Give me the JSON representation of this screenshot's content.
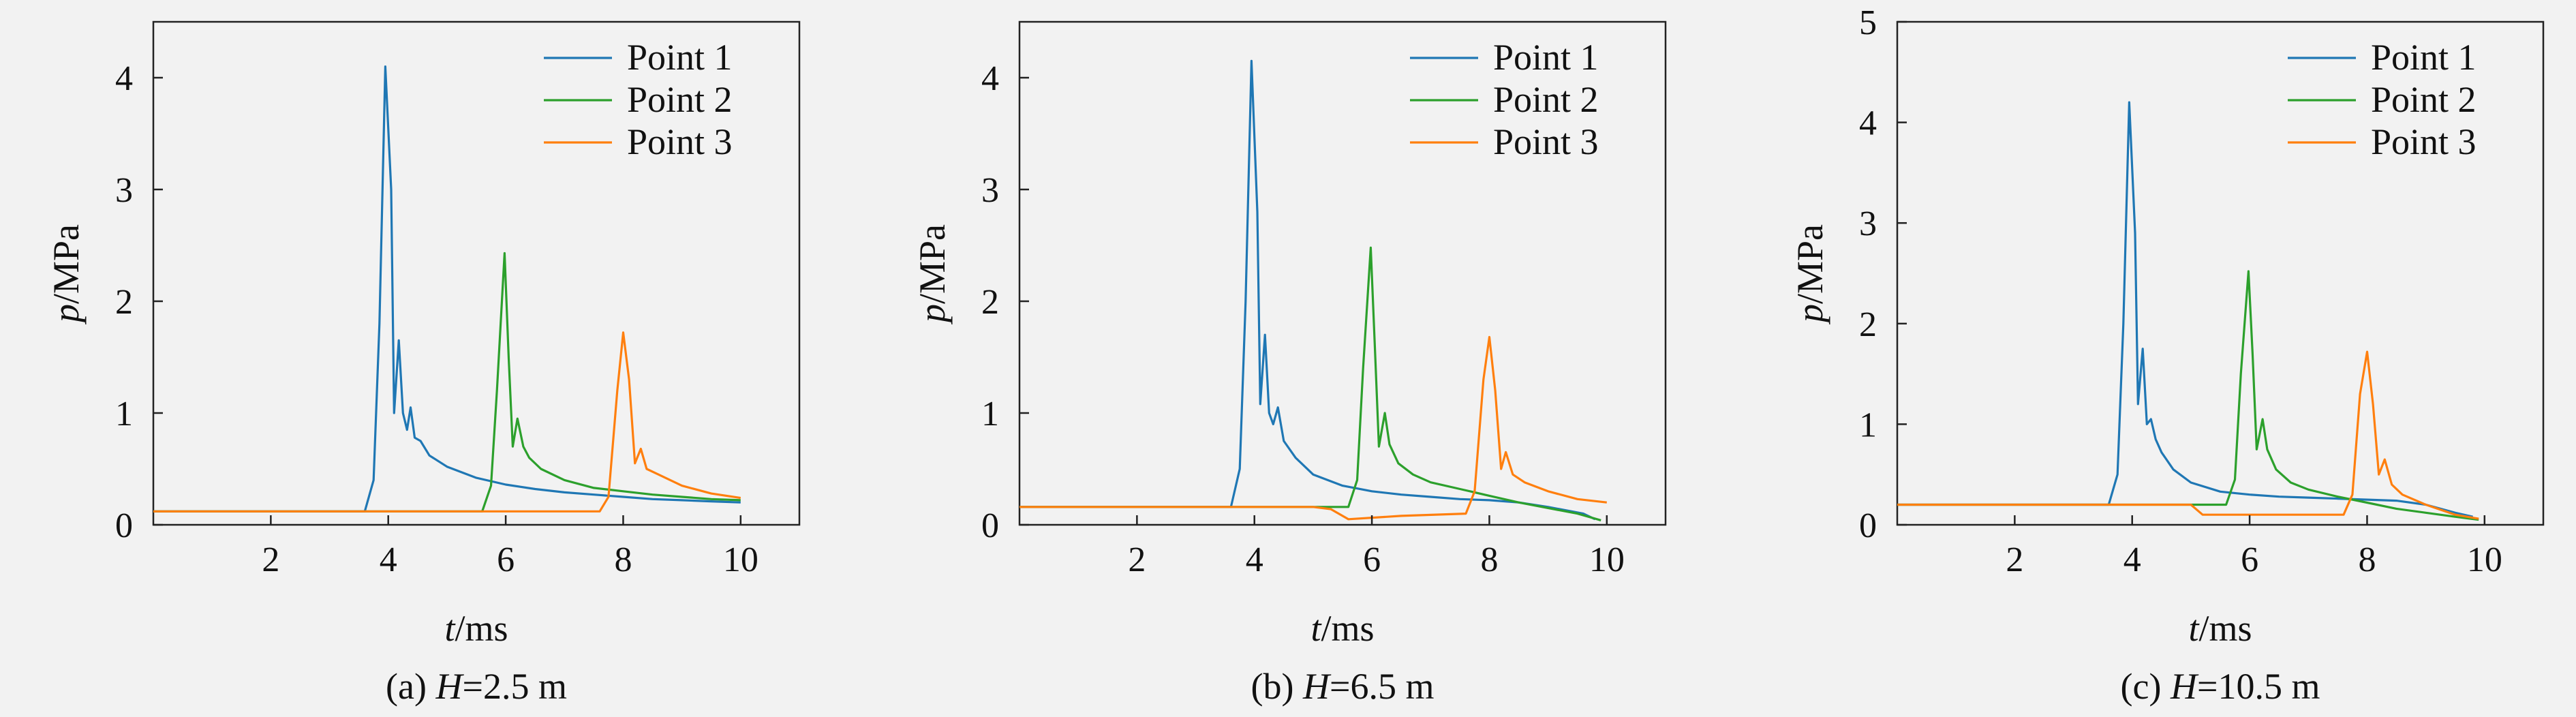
{
  "figure": {
    "panels": [
      {
        "caption_prefix": "(a) ",
        "caption_var": "H",
        "caption_value": "=2.5 m"
      },
      {
        "caption_prefix": "(b) ",
        "caption_var": "H",
        "caption_value": "=6.5 m"
      },
      {
        "caption_prefix": "(c) ",
        "caption_var": "H",
        "caption_value": "=10.5 m"
      }
    ]
  },
  "chart_data": [
    {
      "type": "line",
      "xlabel_var": "t",
      "xlabel_unit": "/ms",
      "ylabel_var": "p",
      "ylabel_unit": "/MPa",
      "xlim": [
        0,
        11
      ],
      "ylim": [
        0,
        4.5
      ],
      "xticks": [
        2,
        4,
        6,
        8,
        10
      ],
      "yticks": [
        0,
        1,
        2,
        3,
        4
      ],
      "grid": false,
      "legend_position": "top-right",
      "series": [
        {
          "name": "Point 1",
          "color": "#1f77b4",
          "points": [
            [
              0,
              0.12
            ],
            [
              3.6,
              0.12
            ],
            [
              3.75,
              0.4
            ],
            [
              3.85,
              1.8
            ],
            [
              3.95,
              4.1
            ],
            [
              4.05,
              3.0
            ],
            [
              4.1,
              1.0
            ],
            [
              4.18,
              1.65
            ],
            [
              4.25,
              1.0
            ],
            [
              4.32,
              0.85
            ],
            [
              4.38,
              1.05
            ],
            [
              4.45,
              0.78
            ],
            [
              4.55,
              0.75
            ],
            [
              4.7,
              0.62
            ],
            [
              5.0,
              0.52
            ],
            [
              5.5,
              0.42
            ],
            [
              6.0,
              0.36
            ],
            [
              6.5,
              0.32
            ],
            [
              7.0,
              0.29
            ],
            [
              7.5,
              0.27
            ],
            [
              8.0,
              0.25
            ],
            [
              8.5,
              0.23
            ],
            [
              9.0,
              0.22
            ],
            [
              9.5,
              0.21
            ],
            [
              10.0,
              0.2
            ]
          ]
        },
        {
          "name": "Point 2",
          "color": "#2ca02c",
          "points": [
            [
              0,
              0.12
            ],
            [
              5.6,
              0.12
            ],
            [
              5.75,
              0.35
            ],
            [
              5.85,
              1.2
            ],
            [
              5.98,
              2.43
            ],
            [
              6.05,
              1.5
            ],
            [
              6.12,
              0.7
            ],
            [
              6.2,
              0.95
            ],
            [
              6.3,
              0.7
            ],
            [
              6.4,
              0.6
            ],
            [
              6.6,
              0.5
            ],
            [
              7.0,
              0.4
            ],
            [
              7.5,
              0.33
            ],
            [
              8.0,
              0.3
            ],
            [
              8.5,
              0.27
            ],
            [
              9.0,
              0.25
            ],
            [
              9.5,
              0.23
            ],
            [
              10.0,
              0.22
            ]
          ]
        },
        {
          "name": "Point 3",
          "color": "#ff7f0e",
          "points": [
            [
              0,
              0.12
            ],
            [
              7.6,
              0.12
            ],
            [
              7.75,
              0.25
            ],
            [
              7.9,
              1.2
            ],
            [
              8.0,
              1.72
            ],
            [
              8.1,
              1.3
            ],
            [
              8.2,
              0.55
            ],
            [
              8.3,
              0.68
            ],
            [
              8.4,
              0.5
            ],
            [
              8.6,
              0.45
            ],
            [
              9.0,
              0.35
            ],
            [
              9.5,
              0.28
            ],
            [
              10.0,
              0.24
            ]
          ]
        }
      ]
    },
    {
      "type": "line",
      "xlabel_var": "t",
      "xlabel_unit": "/ms",
      "ylabel_var": "p",
      "ylabel_unit": "/MPa",
      "xlim": [
        0,
        11
      ],
      "ylim": [
        0,
        4.5
      ],
      "xticks": [
        2,
        4,
        6,
        8,
        10
      ],
      "yticks": [
        0,
        1,
        2,
        3,
        4
      ],
      "grid": false,
      "legend_position": "top-right",
      "series": [
        {
          "name": "Point 1",
          "color": "#1f77b4",
          "points": [
            [
              0,
              0.16
            ],
            [
              3.6,
              0.16
            ],
            [
              3.75,
              0.5
            ],
            [
              3.85,
              2.0
            ],
            [
              3.95,
              4.15
            ],
            [
              4.05,
              2.8
            ],
            [
              4.1,
              1.08
            ],
            [
              4.18,
              1.7
            ],
            [
              4.25,
              1.0
            ],
            [
              4.32,
              0.9
            ],
            [
              4.4,
              1.05
            ],
            [
              4.5,
              0.75
            ],
            [
              4.7,
              0.6
            ],
            [
              5.0,
              0.45
            ],
            [
              5.5,
              0.35
            ],
            [
              6.0,
              0.3
            ],
            [
              6.5,
              0.27
            ],
            [
              7.0,
              0.25
            ],
            [
              7.5,
              0.23
            ],
            [
              8.0,
              0.22
            ],
            [
              8.5,
              0.2
            ],
            [
              9.0,
              0.16
            ],
            [
              9.6,
              0.1
            ],
            [
              9.8,
              0.05
            ]
          ]
        },
        {
          "name": "Point 2",
          "color": "#2ca02c",
          "points": [
            [
              0,
              0.16
            ],
            [
              5.6,
              0.16
            ],
            [
              5.75,
              0.4
            ],
            [
              5.85,
              1.4
            ],
            [
              5.98,
              2.48
            ],
            [
              6.05,
              1.6
            ],
            [
              6.12,
              0.7
            ],
            [
              6.22,
              1.0
            ],
            [
              6.3,
              0.72
            ],
            [
              6.45,
              0.55
            ],
            [
              6.7,
              0.45
            ],
            [
              7.0,
              0.38
            ],
            [
              7.5,
              0.32
            ],
            [
              8.0,
              0.26
            ],
            [
              8.5,
              0.2
            ],
            [
              9.0,
              0.15
            ],
            [
              9.5,
              0.1
            ],
            [
              9.9,
              0.04
            ]
          ]
        },
        {
          "name": "Point 3",
          "color": "#ff7f0e",
          "points": [
            [
              0,
              0.16
            ],
            [
              5.0,
              0.16
            ],
            [
              5.3,
              0.14
            ],
            [
              5.6,
              0.05
            ],
            [
              6.5,
              0.08
            ],
            [
              7.6,
              0.1
            ],
            [
              7.75,
              0.3
            ],
            [
              7.9,
              1.3
            ],
            [
              8.0,
              1.68
            ],
            [
              8.1,
              1.2
            ],
            [
              8.2,
              0.5
            ],
            [
              8.28,
              0.65
            ],
            [
              8.4,
              0.45
            ],
            [
              8.6,
              0.38
            ],
            [
              9.0,
              0.3
            ],
            [
              9.5,
              0.23
            ],
            [
              10.0,
              0.2
            ]
          ]
        }
      ]
    },
    {
      "type": "line",
      "xlabel_var": "t",
      "xlabel_unit": "/ms",
      "ylabel_var": "p",
      "ylabel_unit": "/MPa",
      "xlim": [
        0,
        11
      ],
      "ylim": [
        0,
        5
      ],
      "xticks": [
        2,
        4,
        6,
        8,
        10
      ],
      "yticks": [
        0,
        1,
        2,
        3,
        4,
        5
      ],
      "grid": false,
      "legend_position": "top-right",
      "series": [
        {
          "name": "Point 1",
          "color": "#1f77b4",
          "points": [
            [
              0,
              0.2
            ],
            [
              3.6,
              0.2
            ],
            [
              3.75,
              0.5
            ],
            [
              3.85,
              2.0
            ],
            [
              3.95,
              4.2
            ],
            [
              4.05,
              2.9
            ],
            [
              4.1,
              1.2
            ],
            [
              4.18,
              1.75
            ],
            [
              4.25,
              1.0
            ],
            [
              4.32,
              1.05
            ],
            [
              4.4,
              0.85
            ],
            [
              4.5,
              0.72
            ],
            [
              4.7,
              0.55
            ],
            [
              5.0,
              0.42
            ],
            [
              5.5,
              0.33
            ],
            [
              6.0,
              0.3
            ],
            [
              6.5,
              0.28
            ],
            [
              7.0,
              0.27
            ],
            [
              7.5,
              0.26
            ],
            [
              8.0,
              0.25
            ],
            [
              8.5,
              0.24
            ],
            [
              9.0,
              0.2
            ],
            [
              9.5,
              0.12
            ],
            [
              9.8,
              0.08
            ]
          ]
        },
        {
          "name": "Point 2",
          "color": "#2ca02c",
          "points": [
            [
              0,
              0.2
            ],
            [
              5.6,
              0.2
            ],
            [
              5.75,
              0.45
            ],
            [
              5.85,
              1.5
            ],
            [
              5.98,
              2.52
            ],
            [
              6.05,
              1.7
            ],
            [
              6.12,
              0.75
            ],
            [
              6.22,
              1.05
            ],
            [
              6.3,
              0.75
            ],
            [
              6.45,
              0.55
            ],
            [
              6.7,
              0.42
            ],
            [
              7.0,
              0.35
            ],
            [
              7.5,
              0.28
            ],
            [
              8.0,
              0.22
            ],
            [
              8.5,
              0.16
            ],
            [
              9.0,
              0.12
            ],
            [
              9.5,
              0.08
            ],
            [
              9.9,
              0.05
            ]
          ]
        },
        {
          "name": "Point 3",
          "color": "#ff7f0e",
          "points": [
            [
              0,
              0.2
            ],
            [
              5.0,
              0.2
            ],
            [
              5.2,
              0.1
            ],
            [
              5.5,
              0.1
            ],
            [
              7.6,
              0.1
            ],
            [
              7.75,
              0.3
            ],
            [
              7.88,
              1.3
            ],
            [
              8.0,
              1.72
            ],
            [
              8.1,
              1.2
            ],
            [
              8.2,
              0.5
            ],
            [
              8.3,
              0.65
            ],
            [
              8.42,
              0.4
            ],
            [
              8.6,
              0.3
            ],
            [
              9.0,
              0.2
            ],
            [
              9.5,
              0.1
            ],
            [
              9.9,
              0.06
            ]
          ]
        }
      ]
    }
  ]
}
